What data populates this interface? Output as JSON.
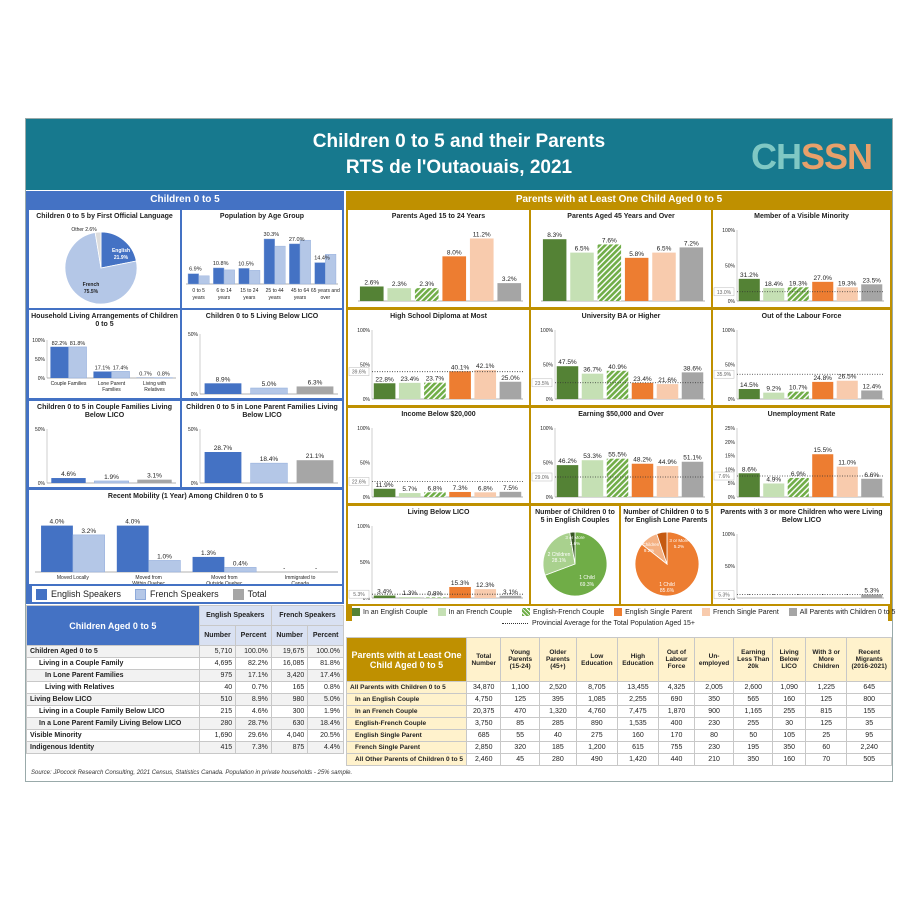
{
  "header": {
    "title_line1": "Children 0 to 5 and their Parents",
    "title_line2": "RTS de l'Outaouais, 2021",
    "logo_ch": "CH",
    "logo_ssn": "SSN"
  },
  "colors": {
    "teal": "#17798e",
    "blue": "#4472c4",
    "gold": "#bf9000",
    "english": "#4472c4",
    "french": "#b4c7e7",
    "total": "#a6a6a6",
    "en_couple": "#548235",
    "fr_couple": "#c5e0b4",
    "mixed_couple": "#70ad47",
    "en_single": "#ed7d31",
    "fr_single": "#f8cbad",
    "all_parents": "#a5a5a5"
  },
  "sections": {
    "children": "Children 0 to 5",
    "parents": "Parents with at Least One Child Aged 0 to 5"
  },
  "legend_children": [
    "English Speakers",
    "French Speakers",
    "Total"
  ],
  "legend_parents": [
    "In an English Couple",
    "In an French Couple",
    "English-French Couple",
    "English Single Parent",
    "French Single Parent",
    "All Parents with Children 0 to 5"
  ],
  "legend_avg": "Provincial Average for the Total Population Aged 15+",
  "chart_data": [
    {
      "id": "language",
      "type": "pie",
      "title": "Children 0 to 5 by First Official Language",
      "slices": [
        {
          "name": "English",
          "value": 21.9
        },
        {
          "name": "French",
          "value": 75.5
        },
        {
          "name": "Other",
          "value": 2.6
        }
      ],
      "labels": [
        "English",
        "21.9%",
        "French",
        "75.5%",
        "Other 2.6%"
      ]
    },
    {
      "id": "age",
      "type": "bar",
      "title": "Population by Age Group",
      "categories": [
        "0 to 5 years",
        "6 to 14 years",
        "15 to 24 years",
        "25 to 44 years",
        "45 to 64 years",
        "65 years and over"
      ],
      "series": [
        {
          "values": [
            6.9,
            10.8,
            10.5,
            30.3,
            27.0,
            14.4
          ]
        },
        {
          "values": [
            5.5,
            9.5,
            9.2,
            25.5,
            29.5,
            20.0
          ]
        }
      ],
      "value_labels": [
        "6.9%",
        "10.8%",
        "10.5%",
        "30.3%",
        "27.0%",
        "14.4%"
      ],
      "ylim": [
        0,
        35
      ]
    },
    {
      "id": "household",
      "type": "bar",
      "title": "Household Living Arrangements of Children 0 to 5",
      "categories": [
        "Couple Families",
        "Lone Parent Families",
        "Living with Relatives"
      ],
      "series": [
        {
          "name": "English Speakers",
          "values": [
            82.2,
            17.1,
            0.7
          ]
        },
        {
          "name": "French Speakers",
          "values": [
            81.8,
            17.4,
            0.8
          ]
        }
      ],
      "value_labels": [
        [
          "82.2%",
          "17.1%",
          "0.7%"
        ],
        [
          "81.8%",
          "17.4%",
          "0.8%"
        ]
      ],
      "yticks": [
        "100%",
        "50%",
        "0%"
      ],
      "ylim": [
        0,
        100
      ]
    },
    {
      "id": "lico",
      "type": "bar",
      "title": "Children 0 to 5 Living Below LICO",
      "categories": [
        "English",
        "French",
        "Total"
      ],
      "values": [
        8.9,
        5.0,
        6.3
      ],
      "value_labels": [
        "8.9%",
        "5.0%",
        "6.3%"
      ],
      "yticks": [
        "50%",
        "0%"
      ],
      "ylim": [
        0,
        50
      ]
    },
    {
      "id": "couple_lico",
      "type": "bar",
      "title": "Children 0 to 5 in Couple Families Living Below LICO",
      "categories": [
        "English",
        "French",
        "Total"
      ],
      "values": [
        4.6,
        1.9,
        3.1
      ],
      "value_labels": [
        "4.6%",
        "1.9%",
        "3.1%"
      ],
      "yticks": [
        "50%",
        "0%"
      ],
      "ylim": [
        0,
        50
      ]
    },
    {
      "id": "lone_lico",
      "type": "bar",
      "title": "Children 0 to 5 in Lone Parent Families Living Below LICO",
      "categories": [
        "English",
        "French",
        "Total"
      ],
      "values": [
        28.7,
        18.4,
        21.1
      ],
      "value_labels": [
        "28.7%",
        "18.4%",
        "21.1%"
      ],
      "yticks": [
        "50%",
        "0%"
      ],
      "ylim": [
        0,
        50
      ]
    },
    {
      "id": "mobility",
      "type": "bar",
      "title": "Recent Mobility (1 Year) Among Children 0 to 5",
      "categories": [
        "Moved Locally",
        "Moved from Within Quebec",
        "Moved from Outside Quebec",
        "Immigrated to Canada"
      ],
      "series": [
        {
          "name": "English Speakers",
          "values": [
            4.0,
            4.0,
            1.3,
            0
          ]
        },
        {
          "name": "French Speakers",
          "values": [
            3.2,
            1.0,
            0.4,
            0
          ]
        }
      ],
      "value_labels": [
        [
          "4.0%",
          "4.0%",
          "1.3%",
          "-"
        ],
        [
          "3.2%",
          "1.0%",
          "0.4%",
          "-"
        ]
      ],
      "ylim": [
        0,
        5
      ]
    },
    {
      "id": "p15_24",
      "type": "bar",
      "title": "Parents Aged 15 to 24 Years",
      "values": [
        2.6,
        2.3,
        2.3,
        8.0,
        11.2,
        3.2
      ],
      "value_labels": [
        "2.6%",
        "2.3%",
        "2.3%",
        "8.0%",
        "11.2%",
        "3.2%"
      ],
      "ylim": [
        0,
        12
      ]
    },
    {
      "id": "p45",
      "type": "bar",
      "title": "Parents Aged 45 Years and Over",
      "values": [
        8.3,
        6.5,
        7.6,
        5.8,
        6.5,
        7.2
      ],
      "value_labels": [
        "8.3%",
        "6.5%",
        "7.6%",
        "5.8%",
        "6.5%",
        "7.2%"
      ],
      "ylim": [
        0,
        9
      ]
    },
    {
      "id": "visible",
      "type": "bar",
      "title": "Member of a Visible Minority",
      "values": [
        31.2,
        18.4,
        19.3,
        27.0,
        19.3,
        23.5
      ],
      "value_labels": [
        "31.2%",
        "18.4%",
        "19.3%",
        "27.0%",
        "19.3%",
        "23.5%"
      ],
      "yticks": [
        "100%",
        "50%",
        "0%"
      ],
      "ylim": [
        0,
        100
      ],
      "avg": 13.0,
      "avg_label": "13.0%"
    },
    {
      "id": "highschool",
      "type": "bar",
      "title": "High School Diploma at Most",
      "values": [
        22.8,
        23.4,
        23.7,
        40.1,
        42.1,
        25.0
      ],
      "value_labels": [
        "22.8%",
        "23.4%",
        "23.7%",
        "40.1%",
        "42.1%",
        "25.0%"
      ],
      "yticks": [
        "100%",
        "50%",
        "0%"
      ],
      "ylim": [
        0,
        100
      ],
      "avg": 39.6,
      "avg_label": "39.6%"
    },
    {
      "id": "university",
      "type": "bar",
      "title": "University BA or Higher",
      "values": [
        47.5,
        36.7,
        40.9,
        23.4,
        21.6,
        38.6
      ],
      "value_labels": [
        "47.5%",
        "36.7%",
        "40.9%",
        "23.4%",
        "21.6%",
        "38.6%"
      ],
      "yticks": [
        "100%",
        "50%",
        "0%"
      ],
      "ylim": [
        0,
        100
      ],
      "avg": 23.5,
      "avg_label": "23.5%"
    },
    {
      "id": "labour",
      "type": "bar",
      "title": "Out of the Labour Force",
      "values": [
        14.5,
        9.2,
        10.7,
        24.8,
        26.5,
        12.4
      ],
      "value_labels": [
        "14.5%",
        "9.2%",
        "10.7%",
        "24.8%",
        "26.5%",
        "12.4%"
      ],
      "yticks": [
        "100%",
        "50%",
        "0%"
      ],
      "ylim": [
        0,
        100
      ],
      "avg": 35.9,
      "avg_label": "35.9%"
    },
    {
      "id": "income",
      "type": "bar",
      "title": "Income Below $20,000",
      "values": [
        11.9,
        5.7,
        6.8,
        7.3,
        6.8,
        7.5
      ],
      "value_labels": [
        "11.9%",
        "5.7%",
        "6.8%",
        "7.3%",
        "6.8%",
        "7.5%"
      ],
      "yticks": [
        "100%",
        "50%",
        "0%"
      ],
      "ylim": [
        0,
        100
      ],
      "avg": 22.6,
      "avg_label": "22.6%"
    },
    {
      "id": "earning",
      "type": "bar",
      "title": "Earning $50,000 and Over",
      "values": [
        46.2,
        53.3,
        55.5,
        48.2,
        44.9,
        51.1
      ],
      "value_labels": [
        "46.2%",
        "53.3%",
        "55.5%",
        "48.2%",
        "44.9%",
        "51.1%"
      ],
      "yticks": [
        "100%",
        "50%",
        "0%"
      ],
      "ylim": [
        0,
        100
      ],
      "avg": 29.0,
      "avg_label": "29.0%"
    },
    {
      "id": "unemployment",
      "type": "bar",
      "title": "Unemployment Rate",
      "values": [
        8.6,
        4.9,
        6.9,
        15.5,
        11.0,
        6.6
      ],
      "value_labels": [
        "8.6%",
        "4.9%",
        "6.9%",
        "15.5%",
        "11.0%",
        "6.6%"
      ],
      "yticks": [
        "25%",
        "20%",
        "15%",
        "10%",
        "5%",
        "0%"
      ],
      "ylim": [
        0,
        25
      ],
      "avg": 7.6,
      "avg_label": "7.6%"
    },
    {
      "id": "livlico",
      "type": "bar",
      "title": "Living Below LICO",
      "values": [
        3.4,
        1.3,
        0.8,
        15.3,
        12.3,
        3.1
      ],
      "value_labels": [
        "3.4%",
        "1.3%",
        "0.8%",
        "15.3%",
        "12.3%",
        "3.1%"
      ],
      "yticks": [
        "100%",
        "50%",
        "0%"
      ],
      "ylim": [
        0,
        100
      ],
      "avg": 5.3,
      "avg_label": "5.3%"
    },
    {
      "id": "pie_couple",
      "type": "pie",
      "title": "Number of Children 0 to 5 in English Couples",
      "slices": [
        {
          "name": "1 Child",
          "value": 69.3
        },
        {
          "name": "2 Children",
          "value": 28.1
        },
        {
          "name": "3 or More",
          "value": 2.6
        }
      ],
      "labels": [
        "1 Child",
        "69.3%",
        "2 Children",
        "28.1%",
        "3 or More",
        "2.6%"
      ]
    },
    {
      "id": "pie_lone",
      "type": "pie",
      "title": "Number of Children 0 to 5 for English Lone Parents",
      "slices": [
        {
          "name": "1 Child",
          "value": 85.6
        },
        {
          "name": "2 Children",
          "value": 9.2
        },
        {
          "name": "3 or More",
          "value": 5.2
        }
      ],
      "labels": [
        "1 Child",
        "85.6%",
        "2 Children",
        "9.2%",
        "3 or More",
        "5.2%"
      ]
    },
    {
      "id": "three_more",
      "type": "bar",
      "title": "Parents with 3 or more Children who were Living Below LICO",
      "values": [
        0,
        0,
        0,
        0,
        0,
        5.3
      ],
      "value_labels": [
        "-",
        "-",
        "-",
        "-",
        "-",
        "5.3%"
      ],
      "yticks": [
        "100%",
        "50%",
        "0%"
      ],
      "ylim": [
        0,
        100
      ],
      "avg": 5.3,
      "avg_label": "5.3%"
    }
  ],
  "table_children": {
    "title": "Children Aged 0 to 5",
    "groups": [
      "English Speakers",
      "French Speakers"
    ],
    "sub": [
      "Number",
      "Percent",
      "Number",
      "Percent"
    ],
    "rows": [
      [
        "Children Aged 0 to 5",
        "5,710",
        "100.0%",
        "19,675",
        "100.0%"
      ],
      [
        "Living in a Couple Family",
        "4,695",
        "82.2%",
        "16,085",
        "81.8%"
      ],
      [
        "In Lone Parent Families",
        "975",
        "17.1%",
        "3,420",
        "17.4%"
      ],
      [
        "Living with Relatives",
        "40",
        "0.7%",
        "165",
        "0.8%"
      ],
      [
        "Living Below LICO",
        "510",
        "8.9%",
        "980",
        "5.0%"
      ],
      [
        "Living in a Couple Family Below LICO",
        "215",
        "4.6%",
        "300",
        "1.9%"
      ],
      [
        "In a Lone Parent Family Living Below LICO",
        "280",
        "28.7%",
        "630",
        "18.4%"
      ],
      [
        "Visible Minority",
        "1,690",
        "29.6%",
        "4,040",
        "20.5%"
      ],
      [
        "Indigenous Identity",
        "415",
        "7.3%",
        "875",
        "4.4%"
      ]
    ]
  },
  "table_parents": {
    "title": "Parents with at Least One Child Aged 0 to 5",
    "cols": [
      "Total Number",
      "Young Parents (15-24)",
      "Older Parents (45+)",
      "Low Education",
      "High Education",
      "Out of Labour Force",
      "Un-employed",
      "Earning Less Than 20k",
      "Living Below LICO",
      "With 3 or More Children",
      "Recent Migrants (2016-2021)"
    ],
    "rows": [
      [
        "All Parents with Children 0 to 5",
        "34,870",
        "1,100",
        "2,520",
        "8,705",
        "13,455",
        "4,325",
        "2,005",
        "2,600",
        "1,090",
        "1,225",
        "645"
      ],
      [
        "In an English Couple",
        "4,750",
        "125",
        "395",
        "1,085",
        "2,255",
        "690",
        "350",
        "565",
        "160",
        "125",
        "800"
      ],
      [
        "In an French Couple",
        "20,375",
        "470",
        "1,320",
        "4,760",
        "7,475",
        "1,870",
        "900",
        "1,165",
        "255",
        "815",
        "155"
      ],
      [
        "English-French Couple",
        "3,750",
        "85",
        "285",
        "890",
        "1,535",
        "400",
        "230",
        "255",
        "30",
        "125",
        "35"
      ],
      [
        "English Single Parent",
        "685",
        "55",
        "40",
        "275",
        "160",
        "170",
        "80",
        "50",
        "105",
        "25",
        "95"
      ],
      [
        "French Single Parent",
        "2,850",
        "320",
        "185",
        "1,200",
        "615",
        "755",
        "230",
        "195",
        "350",
        "60",
        "2,240"
      ],
      [
        "All Other Parents of Children 0 to 5",
        "2,460",
        "45",
        "280",
        "490",
        "1,420",
        "440",
        "210",
        "350",
        "160",
        "70",
        "505"
      ]
    ]
  },
  "source": "Source: JPocock Research Consulting, 2021 Census, Statistics Canada. Population in private households - 25% sample."
}
